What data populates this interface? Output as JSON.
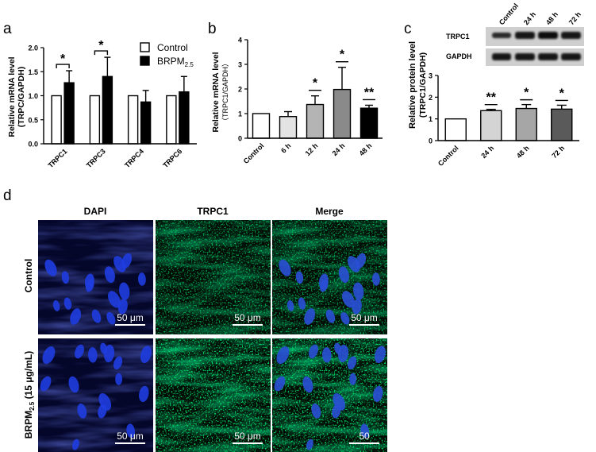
{
  "figure": {
    "panel_labels": [
      "a",
      "b",
      "c",
      "d"
    ],
    "significance_marks": {
      "single": "*",
      "double": "**"
    }
  },
  "chart_data": [
    {
      "panel": "a",
      "type": "bar",
      "ylabel": [
        "Relative mRNA level",
        "(TRPC/GAPDH)"
      ],
      "ylim": [
        0,
        2.0
      ],
      "yticks": [
        "0.0",
        "0.5",
        "1.0",
        "1.5",
        "2.0"
      ],
      "categories": [
        "TRPC1",
        "TRPC3",
        "TRPC4",
        "TRPC6"
      ],
      "legend": {
        "position": "top-right",
        "control": "Control",
        "treated_main": "BRPM",
        "treated_sub": "2.5"
      },
      "series": [
        {
          "name": "Control",
          "color": "#ffffff",
          "values": [
            1.0,
            1.0,
            1.0,
            1.0
          ],
          "errors": [
            0,
            0,
            0,
            0
          ]
        },
        {
          "name": "BRPM2.5",
          "color": "#000000",
          "values": [
            1.27,
            1.4,
            0.87,
            1.08
          ],
          "errors": [
            0.25,
            0.4,
            0.24,
            0.32
          ]
        }
      ],
      "significance": [
        {
          "category": "TRPC1",
          "mark": "*"
        },
        {
          "category": "TRPC3",
          "mark": "*"
        }
      ]
    },
    {
      "panel": "b",
      "type": "bar",
      "ylabel": [
        "Relative mRNA level",
        "（TRPC1/GAPDH）"
      ],
      "ylim": [
        0,
        4
      ],
      "yticks": [
        "0",
        "1",
        "2",
        "3",
        "4"
      ],
      "categories": [
        "Control",
        "6 h",
        "12 h",
        "24 h",
        "48 h"
      ],
      "values": [
        1.0,
        0.88,
        1.37,
        1.98,
        1.22
      ],
      "errors": [
        0,
        0.2,
        0.35,
        0.9,
        0.12
      ],
      "colors": [
        "#ffffff",
        "#e3e3e3",
        "#b4b4b4",
        "#8a8a8a",
        "#000000"
      ],
      "significance": [
        "",
        "",
        "*",
        "*",
        "**"
      ]
    },
    {
      "panel": "c",
      "type": "bar",
      "ylabel": [
        "Relative protein level",
        "(TRPC1/GAPDH)"
      ],
      "ylim": [
        0,
        3
      ],
      "yticks": [
        "0",
        "1",
        "2",
        "3"
      ],
      "categories": [
        "Control",
        "24 h",
        "48 h",
        "72 h"
      ],
      "values": [
        1.0,
        1.38,
        1.48,
        1.45
      ],
      "errors": [
        0,
        0.06,
        0.18,
        0.18
      ],
      "colors": [
        "#ffffff",
        "#d4d4d4",
        "#a6a6a6",
        "#5a5a5a"
      ],
      "significance": [
        "",
        "**",
        "*",
        "*"
      ],
      "blot": {
        "lane_labels": [
          "Control",
          "24 h",
          "48 h",
          "72 h"
        ],
        "row_labels": [
          "TRPC1",
          "GAPDH"
        ]
      }
    }
  ],
  "micrographs": {
    "column_titles": [
      "DAPI",
      "TRPC1",
      "Merge"
    ],
    "row_labels": [
      "Control",
      "BRPM2.5 (15 μg/mL)"
    ],
    "row_label_parts": {
      "main": "BRPM",
      "sub": "2.5",
      "rest": " (15 μg/mL)"
    },
    "scale_labels": [
      [
        "50 μm",
        "50 μm",
        "50 μm"
      ],
      [
        "50 μm",
        "50 μm",
        "50"
      ]
    ]
  }
}
